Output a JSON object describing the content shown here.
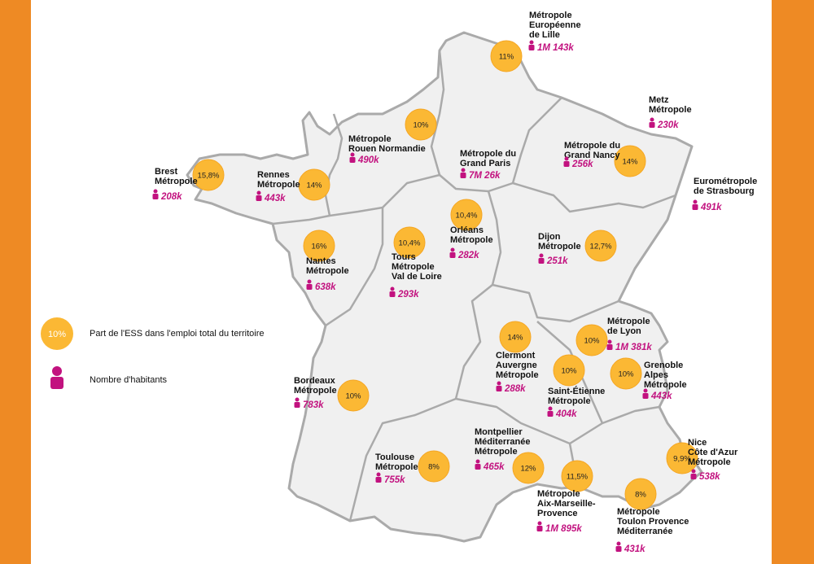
{
  "cities": [
    {
      "name": [
        "Métropole",
        "Européenne",
        "de Lille"
      ],
      "population": "1M 143k",
      "share": "11%"
    },
    {
      "name": [
        "Metz",
        "Métropole"
      ],
      "population": "230k"
    },
    {
      "name": [
        "Métropole",
        "Rouen Normandie"
      ],
      "population": "490k",
      "share": "10%"
    },
    {
      "name": [
        "Métropole du",
        "Grand Paris"
      ],
      "population": "7M 26k"
    },
    {
      "name": [
        "Métropole du",
        "Grand Nancy"
      ],
      "population": "256k",
      "share": "14%"
    },
    {
      "name": [
        "Brest",
        "Métropole"
      ],
      "population": "208k",
      "share": "15,8%"
    },
    {
      "name": [
        "Rennes",
        "Métropole"
      ],
      "population": "443k",
      "share": "14%"
    },
    {
      "name": [
        "Eurométropole",
        "de Strasbourg"
      ],
      "population": "491k"
    },
    {
      "name": [
        "Orléans",
        "Métropole"
      ],
      "population": "282k",
      "share": "10,4%"
    },
    {
      "name": [
        "Dijon",
        "Métropole"
      ],
      "population": "251k",
      "share": "12,7%"
    },
    {
      "name": [
        "Tours",
        "Métropole",
        "Val de Loire"
      ],
      "population": "293k",
      "share": "10,4%"
    },
    {
      "name": [
        "Nantes",
        "Métropole"
      ],
      "population": "638k",
      "share": "16%"
    },
    {
      "name": [
        "Métropole",
        "de Lyon"
      ],
      "population": "1M 381k",
      "share": "10%"
    },
    {
      "name": [
        "Clermont",
        "Auvergne",
        "Métropole"
      ],
      "population": "288k",
      "share": "14%"
    },
    {
      "name": [
        "Grenoble",
        "Alpes",
        "Métropole"
      ],
      "population": "443k",
      "share": "10%"
    },
    {
      "name": [
        "Saint-Étienne",
        "Métropole"
      ],
      "population": "404k",
      "share": "10%"
    },
    {
      "name": [
        "Bordeaux",
        "Métropole"
      ],
      "population": "783k",
      "share": "10%"
    },
    {
      "name": [
        "Montpellier",
        "Méditerranée",
        "Métropole"
      ],
      "population": "465k",
      "share": "12%"
    },
    {
      "name": [
        "Nice",
        "Côte d'Azur",
        "Métropole"
      ],
      "population": "538k",
      "share": "9,9%"
    },
    {
      "name": [
        "Toulouse",
        "Métropole"
      ],
      "population": "755k",
      "share": "8%"
    },
    {
      "name": [
        "Métropole",
        "Aix-Marseille-",
        "Provence"
      ],
      "population": "1M 895k",
      "share": "11,5%"
    },
    {
      "name": [
        "Métropole",
        "Toulon Provence",
        "Méditerranée"
      ],
      "population": "431k",
      "share": "8%"
    }
  ],
  "legend": {
    "share_sample": "10%",
    "share_label": "Part de l'ESS dans l'emploi total du territoire",
    "population_label": "Nombre d'habitants"
  }
}
